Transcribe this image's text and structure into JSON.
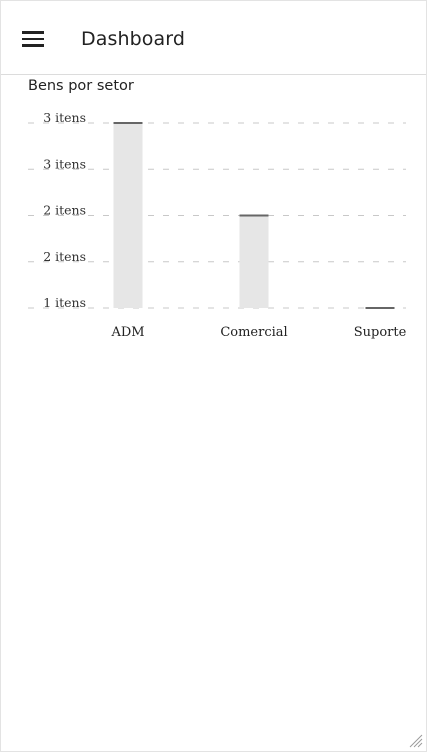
{
  "app": {
    "title": "Dashboard",
    "menu_icon": "hamburger-menu-icon"
  },
  "chart_data": {
    "type": "bar",
    "title": "Bens por setor",
    "xlabel": "",
    "ylabel": "",
    "categories": [
      "ADM",
      "Comercial",
      "Suporte"
    ],
    "values": [
      3,
      2,
      1
    ],
    "y_tick_labels": [
      "3 itens",
      "3 itens",
      "2 itens",
      "2 itens",
      "1 itens"
    ],
    "ylim": [
      1,
      3
    ],
    "grid": true,
    "legend": "none",
    "bar_color": "#e6e6e6",
    "bar_top_color": "#666666"
  }
}
